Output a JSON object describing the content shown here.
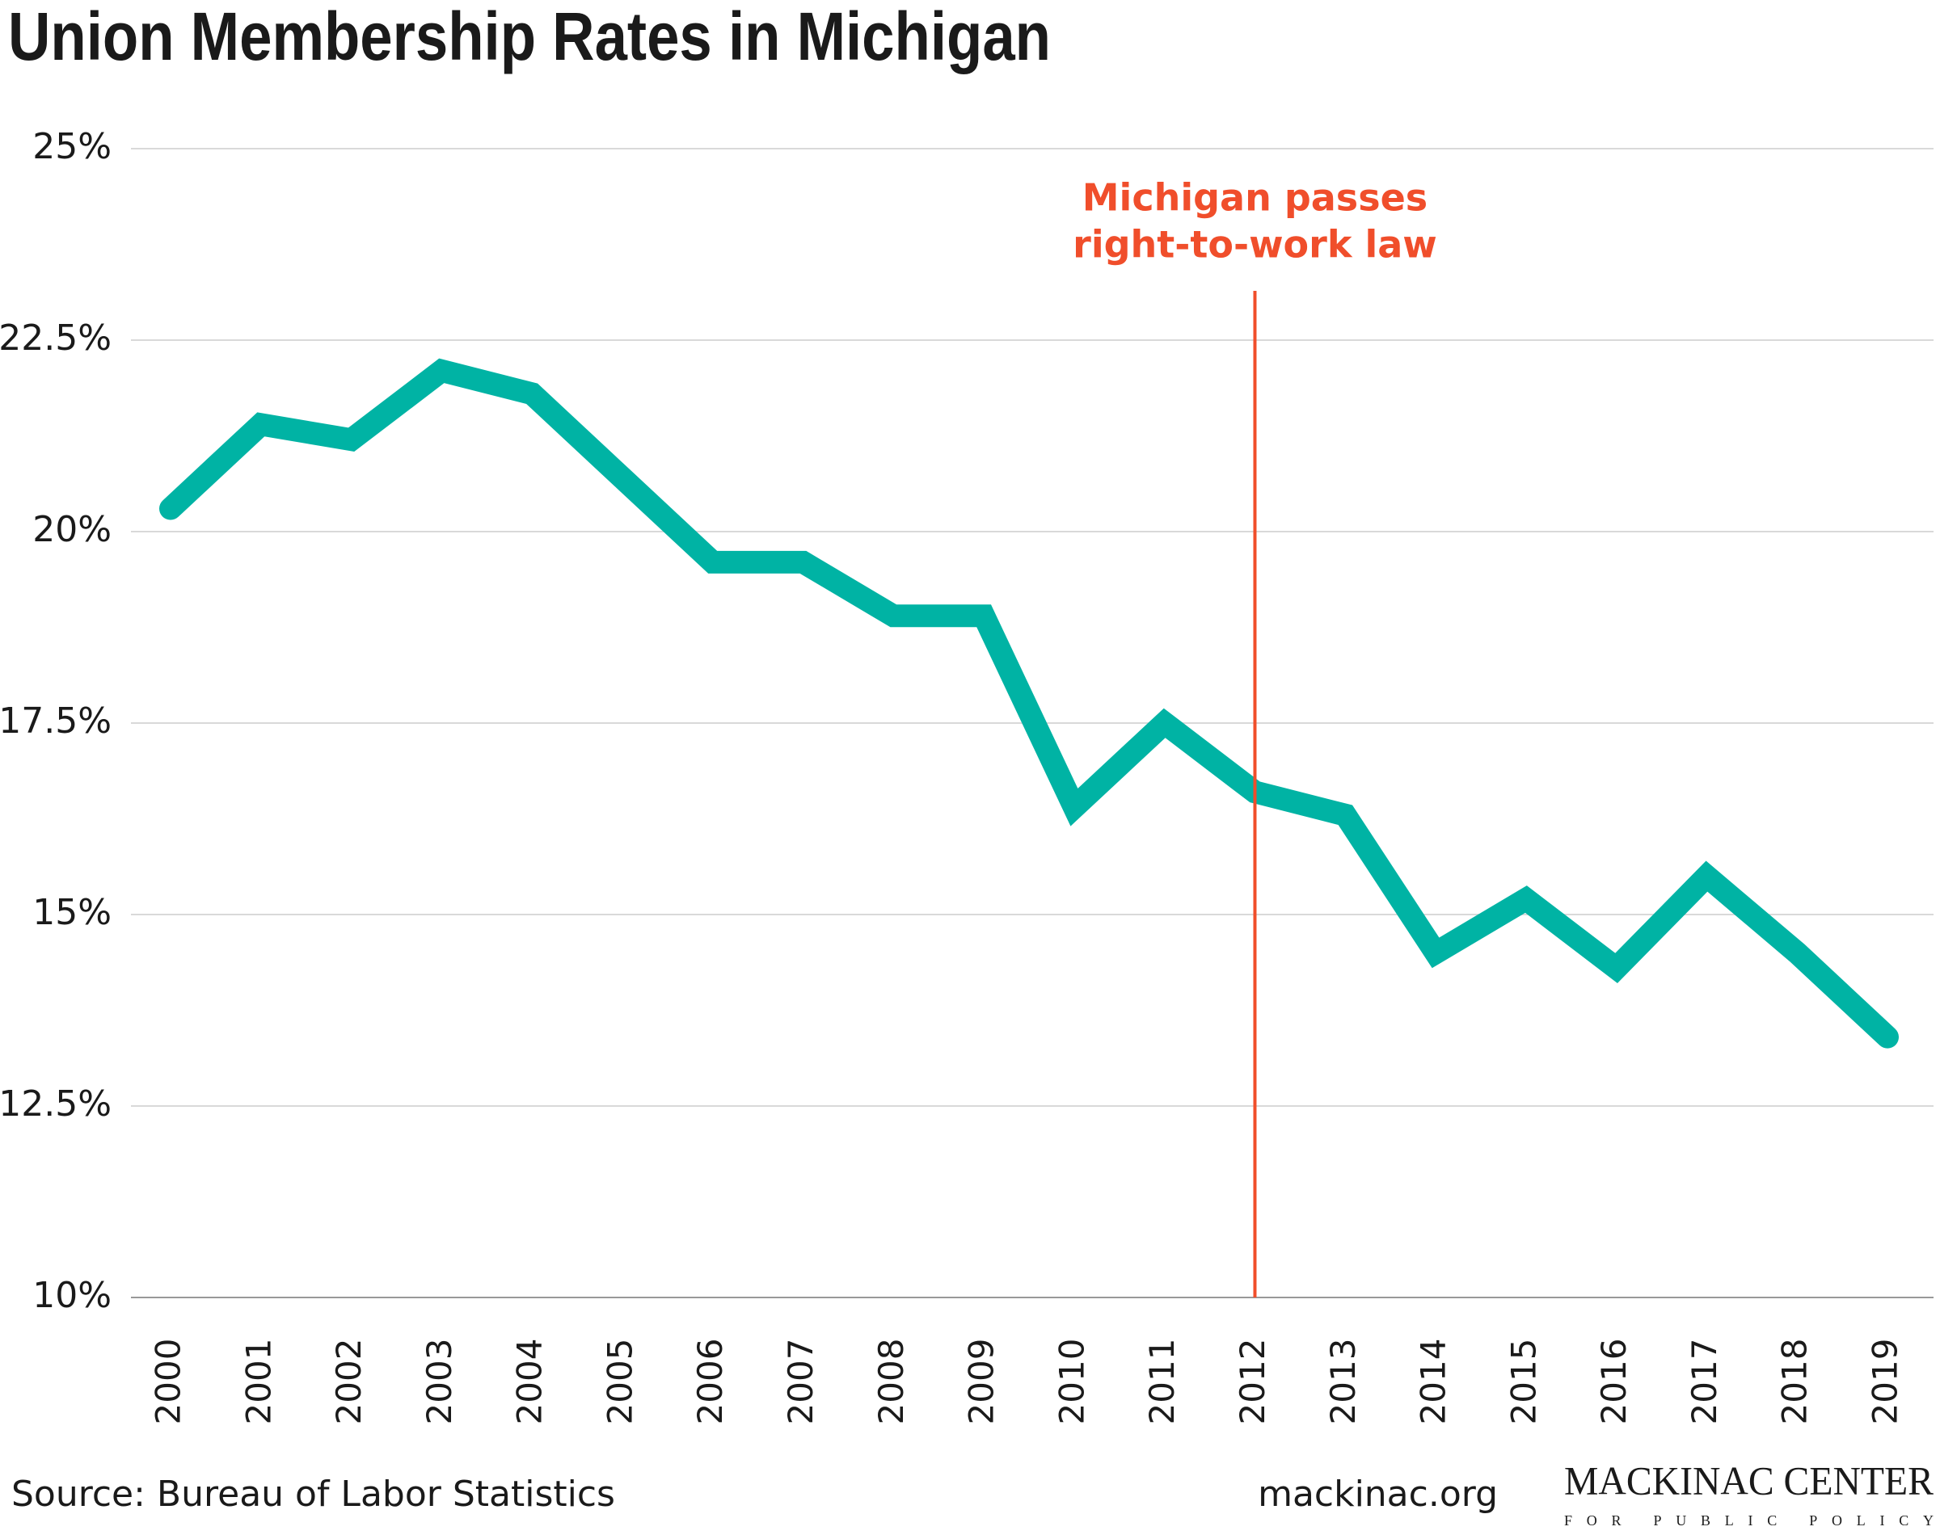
{
  "chart_data": {
    "type": "line",
    "title": "Union Membership Rates in Michigan",
    "categories": [
      "2000",
      "2001",
      "2002",
      "2003",
      "2004",
      "2005",
      "2006",
      "2007",
      "2008",
      "2009",
      "2010",
      "2011",
      "2012",
      "2013",
      "2014",
      "2015",
      "2016",
      "2017",
      "2018",
      "2019"
    ],
    "values": [
      20.3,
      21.4,
      21.2,
      22.1,
      21.8,
      20.7,
      19.6,
      19.6,
      18.9,
      18.9,
      16.4,
      17.5,
      16.6,
      16.3,
      14.5,
      15.2,
      14.3,
      15.5,
      14.5,
      13.4
    ],
    "color": "#00b3a4",
    "ylim": [
      10,
      25
    ],
    "yticks": [
      {
        "value": 10,
        "label": "10%"
      },
      {
        "value": 12.5,
        "label": "12.5%"
      },
      {
        "value": 15,
        "label": "15%"
      },
      {
        "value": 17.5,
        "label": "17.5%"
      },
      {
        "value": 20,
        "label": "20%"
      },
      {
        "value": 22.5,
        "label": "22.5%"
      },
      {
        "value": 25,
        "label": "25%"
      }
    ],
    "grid": true,
    "annotation": {
      "lines": [
        "Michigan passes",
        "right-to-work law"
      ],
      "at": "2012",
      "color": "#f04e2b"
    },
    "source": "Source: Bureau of Labor Statistics",
    "website": "mackinac.org",
    "logo": {
      "name": "MACKINAC CENTER",
      "tagline": "FOR PUBLIC POLICY"
    }
  }
}
